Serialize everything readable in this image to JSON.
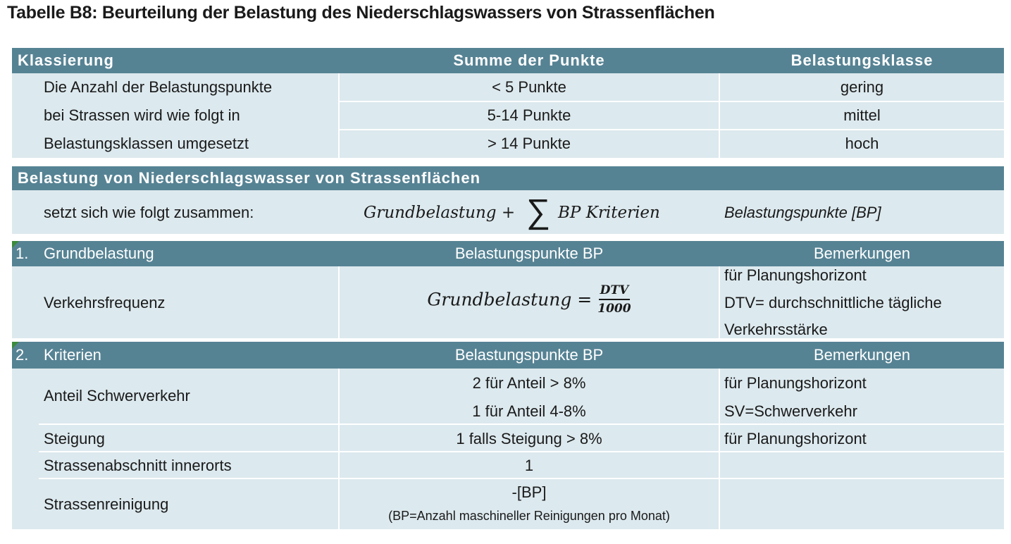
{
  "title": "Tabelle B8: Beurteilung der Belastung des Niederschlagswassers von Strassenflächen",
  "klassierung": {
    "headers": [
      "Klassierung",
      "Summe der Punkte",
      "Belastungsklasse"
    ],
    "description_lines": [
      "Die Anzahl der Belastungspunkte",
      "bei Strassen wird wie folgt in",
      "Belastungsklassen umgesetzt"
    ],
    "rows": [
      {
        "punkte": "< 5 Punkte",
        "klasse": "gering"
      },
      {
        "punkte": "5-14 Punkte",
        "klasse": "mittel"
      },
      {
        "punkte": "> 14 Punkte",
        "klasse": "hoch"
      }
    ]
  },
  "belastung": {
    "header": "Belastung von Niederschlagswasser von Strassenflächen",
    "label": "setzt sich wie folgt zusammen:",
    "formula_left": "Grundbelastung +",
    "sum_symbol": "∑",
    "formula_right": "BP Kriterien",
    "unit": "Belastungspunkte [BP]"
  },
  "grundbelastung": {
    "headers": [
      "1.",
      "Grundbelastung",
      "Belastungspunkte BP",
      "Bemerkungen"
    ],
    "row_label": "Verkehrsfrequenz",
    "formula_lhs": "Grundbelastung =",
    "frac_num": "DTV",
    "frac_den": "1000",
    "remarks": [
      "für Planungshorizont",
      "DTV= durchschnittliche tägliche",
      "Verkehrsstärke"
    ]
  },
  "kriterien": {
    "headers": [
      "2.",
      "Kriterien",
      "Belastungspunkte BP",
      "Bemerkungen"
    ],
    "schwerverkehr": {
      "label": "Anteil Schwerverkehr",
      "points": [
        "2 für Anteil > 8%",
        "1 für Anteil 4-8%"
      ],
      "remarks": [
        "für Planungshorizont",
        "SV=Schwerverkehr"
      ]
    },
    "steigung": {
      "label": "Steigung",
      "points": "1 falls Steigung > 8%",
      "remark": "für Planungshorizont"
    },
    "innerorts": {
      "label": "Strassenabschnitt innerorts",
      "points": "1"
    },
    "reinigung": {
      "label": "Strassenreinigung",
      "points": "-[BP]",
      "note": "(BP=Anzahl maschineller Reinigungen pro Monat)"
    }
  }
}
